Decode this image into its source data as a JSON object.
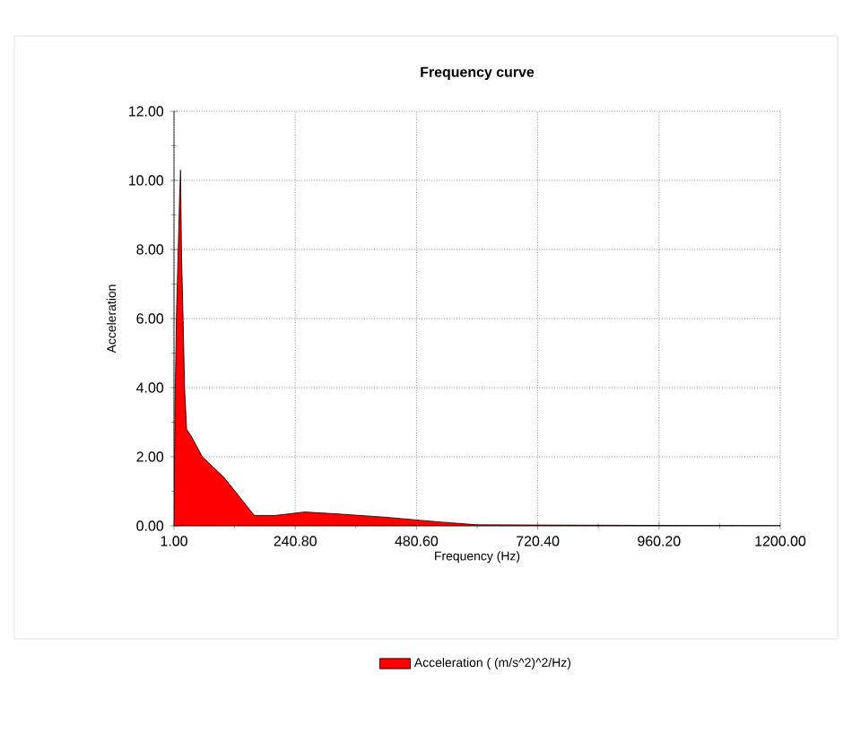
{
  "chart_data": {
    "type": "area",
    "title": "Frequency curve",
    "xlabel": "Frequency (Hz)",
    "ylabel": "Acceleration",
    "x": [
      1,
      3,
      6,
      9,
      12,
      14,
      16,
      19,
      22,
      26,
      35,
      57,
      100,
      160,
      200,
      260,
      320,
      420,
      520,
      600,
      1200
    ],
    "series": [
      {
        "name": "Acceleration ( (m/s^2)^2/Hz)",
        "color": "#ff0000",
        "values": [
          0,
          3.5,
          6.2,
          7.8,
          9.5,
          10.3,
          7.8,
          6.0,
          4.0,
          2.8,
          2.6,
          2.0,
          1.4,
          0.3,
          0.3,
          0.4,
          0.35,
          0.25,
          0.12,
          0.03,
          0
        ]
      }
    ],
    "xlim": [
      1,
      1200
    ],
    "ylim": [
      0,
      12
    ],
    "xticks": [
      {
        "value": 1,
        "label": "1.00"
      },
      {
        "value": 240.8,
        "label": "240.80"
      },
      {
        "value": 480.6,
        "label": "480.60"
      },
      {
        "value": 720.4,
        "label": "720.40"
      },
      {
        "value": 960.2,
        "label": "960.20"
      },
      {
        "value": 1200,
        "label": "1200.00"
      }
    ],
    "yticks": [
      {
        "value": 0,
        "label": "0.00"
      },
      {
        "value": 2,
        "label": "2.00"
      },
      {
        "value": 4,
        "label": "4.00"
      },
      {
        "value": 6,
        "label": "6.00"
      },
      {
        "value": 8,
        "label": "8.00"
      },
      {
        "value": 10,
        "label": "10.00"
      },
      {
        "value": 12,
        "label": "12.00"
      }
    ],
    "grid": true,
    "legend": "bottom",
    "marker": "none",
    "line_style": "solid"
  }
}
